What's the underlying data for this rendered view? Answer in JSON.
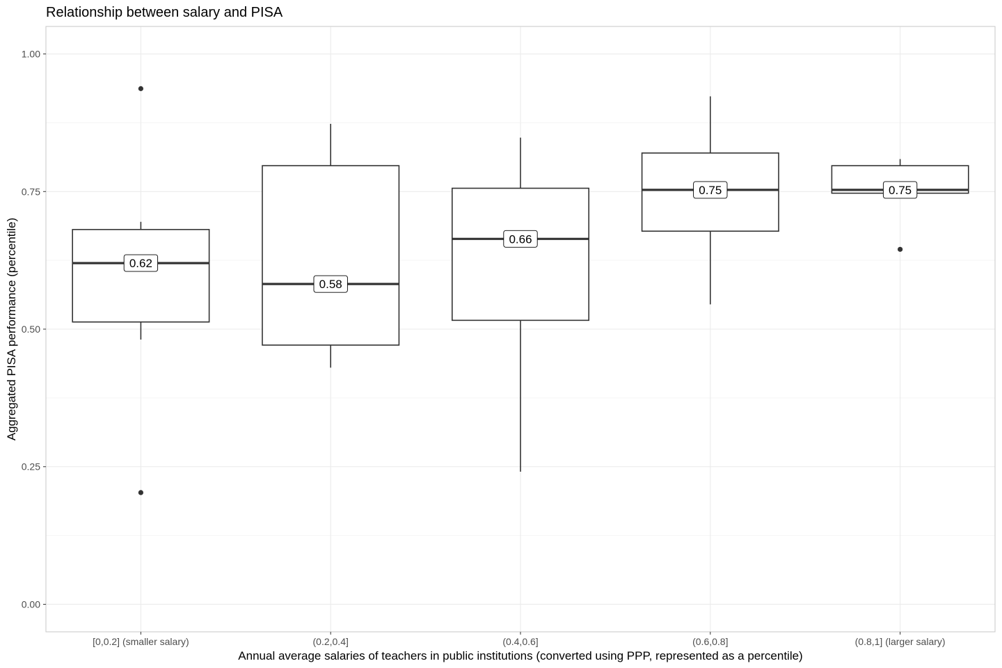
{
  "chart_data": {
    "type": "boxplot",
    "title": "Relationship between salary and PISA",
    "xlabel": "Annual average salaries of teachers in public institutions (converted using PPP, represented as a percentile)",
    "ylabel": "Aggregated PISA performance (percentile)",
    "ylim": [
      -0.05,
      1.05
    ],
    "yticks": [
      0.0,
      0.25,
      0.5,
      0.75,
      1.0
    ],
    "ytick_labels": [
      "0.00",
      "0.25",
      "0.50",
      "0.75",
      "1.00"
    ],
    "grid": true,
    "categories": [
      "[0,0.2] (smaller salary)",
      "(0.2,0.4]",
      "(0.4,0.6]",
      "(0.6,0.8]",
      "(0.8,1] (larger salary)"
    ],
    "boxes": [
      {
        "category": "[0,0.2] (smaller salary)",
        "whisker_low": 0.481,
        "q1": 0.513,
        "median": 0.62,
        "q3": 0.681,
        "whisker_high": 0.695,
        "outliers": [
          0.937,
          0.203
        ],
        "median_label": "0.62"
      },
      {
        "category": "(0.2,0.4]",
        "whisker_low": 0.43,
        "q1": 0.471,
        "median": 0.582,
        "q3": 0.797,
        "whisker_high": 0.873,
        "outliers": [],
        "median_label": "0.58"
      },
      {
        "category": "(0.4,0.6]",
        "whisker_low": 0.241,
        "q1": 0.516,
        "median": 0.664,
        "q3": 0.756,
        "whisker_high": 0.848,
        "outliers": [],
        "median_label": "0.66"
      },
      {
        "category": "(0.6,0.8]",
        "whisker_low": 0.545,
        "q1": 0.678,
        "median": 0.753,
        "q3": 0.82,
        "whisker_high": 0.923,
        "outliers": [],
        "median_label": "0.75"
      },
      {
        "category": "(0.8,1] (larger salary)",
        "whisker_low": 0.747,
        "q1": 0.747,
        "median": 0.753,
        "q3": 0.797,
        "whisker_high": 0.809,
        "outliers": [
          0.645
        ],
        "median_label": "0.75"
      }
    ],
    "colors": {
      "box_stroke": "#333333",
      "box_fill": "#ffffff",
      "grid_major": "#ebebeb",
      "grid_minor": "#f5f5f5",
      "panel_border": "#cccccc",
      "tick_text": "#4d4d4d"
    }
  }
}
